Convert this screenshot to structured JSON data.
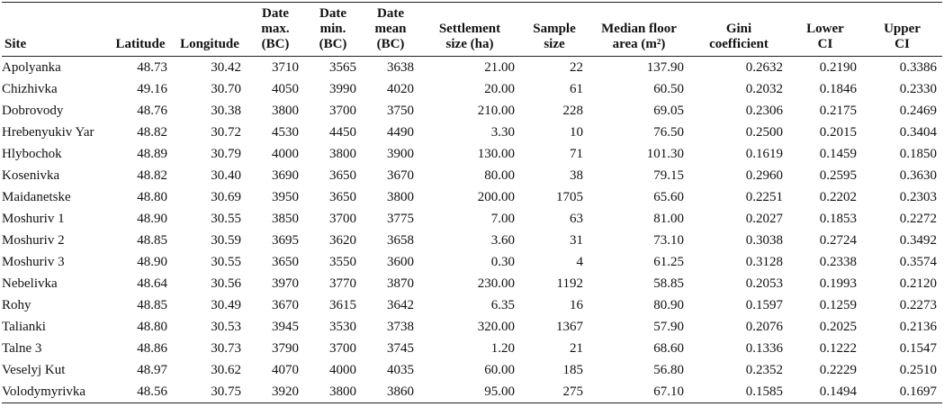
{
  "table": {
    "columns": [
      [
        "Site"
      ],
      [
        "Latitude"
      ],
      [
        "Longitude"
      ],
      [
        "Date",
        "max.",
        "(BC)"
      ],
      [
        "Date",
        "min.",
        "(BC)"
      ],
      [
        "Date",
        "mean",
        "(BC)"
      ],
      [
        "Settlement",
        "size (ha)"
      ],
      [
        "Sample",
        "size"
      ],
      [
        "Median floor",
        "area (m²)"
      ],
      [
        "Gini",
        "coefficient"
      ],
      [
        "Lower",
        "CI"
      ],
      [
        "Upper",
        "CI"
      ]
    ],
    "rows": [
      [
        "Apolyanka",
        "48.73",
        "30.42",
        "3710",
        "3565",
        "3638",
        "21.00",
        "22",
        "137.90",
        "0.2632",
        "0.2190",
        "0.3386"
      ],
      [
        "Chizhivka",
        "49.16",
        "30.70",
        "4050",
        "3990",
        "4020",
        "20.00",
        "61",
        "60.50",
        "0.2032",
        "0.1846",
        "0.2330"
      ],
      [
        "Dobrovody",
        "48.76",
        "30.38",
        "3800",
        "3700",
        "3750",
        "210.00",
        "228",
        "69.05",
        "0.2306",
        "0.2175",
        "0.2469"
      ],
      [
        "Hrebenyukiv Yar",
        "48.82",
        "30.72",
        "4530",
        "4450",
        "4490",
        "3.30",
        "10",
        "76.50",
        "0.2500",
        "0.2015",
        "0.3404"
      ],
      [
        "Hlybochok",
        "48.89",
        "30.79",
        "4000",
        "3800",
        "3900",
        "130.00",
        "71",
        "101.30",
        "0.1619",
        "0.1459",
        "0.1850"
      ],
      [
        "Kosenivka",
        "48.82",
        "30.40",
        "3690",
        "3650",
        "3670",
        "80.00",
        "38",
        "79.15",
        "0.2960",
        "0.2595",
        "0.3630"
      ],
      [
        "Maidanetske",
        "48.80",
        "30.69",
        "3950",
        "3650",
        "3800",
        "200.00",
        "1705",
        "65.60",
        "0.2251",
        "0.2202",
        "0.2303"
      ],
      [
        "Moshuriv 1",
        "48.90",
        "30.55",
        "3850",
        "3700",
        "3775",
        "7.00",
        "63",
        "81.00",
        "0.2027",
        "0.1853",
        "0.2272"
      ],
      [
        "Moshuriv 2",
        "48.85",
        "30.59",
        "3695",
        "3620",
        "3658",
        "3.60",
        "31",
        "73.10",
        "0.3038",
        "0.2724",
        "0.3492"
      ],
      [
        "Moshuriv 3",
        "48.90",
        "30.55",
        "3650",
        "3550",
        "3600",
        "0.30",
        "4",
        "61.25",
        "0.3128",
        "0.2338",
        "0.3574"
      ],
      [
        "Nebelivka",
        "48.64",
        "30.56",
        "3970",
        "3770",
        "3870",
        "230.00",
        "1192",
        "58.85",
        "0.2053",
        "0.1993",
        "0.2120"
      ],
      [
        "Rohy",
        "48.85",
        "30.49",
        "3670",
        "3615",
        "3642",
        "6.35",
        "16",
        "80.90",
        "0.1597",
        "0.1259",
        "0.2273"
      ],
      [
        "Talianki",
        "48.80",
        "30.53",
        "3945",
        "3530",
        "3738",
        "320.00",
        "1367",
        "57.90",
        "0.2076",
        "0.2025",
        "0.2136"
      ],
      [
        "Talne 3",
        "48.86",
        "30.73",
        "3790",
        "3700",
        "3745",
        "1.20",
        "21",
        "68.60",
        "0.1336",
        "0.1222",
        "0.1547"
      ],
      [
        "Veselyj Kut",
        "48.97",
        "30.62",
        "4070",
        "4000",
        "4035",
        "60.00",
        "185",
        "56.80",
        "0.2352",
        "0.2229",
        "0.2510"
      ],
      [
        "Volodymyrivka",
        "48.56",
        "30.75",
        "3920",
        "3800",
        "3860",
        "95.00",
        "275",
        "67.10",
        "0.1585",
        "0.1494",
        "0.1697"
      ]
    ]
  }
}
